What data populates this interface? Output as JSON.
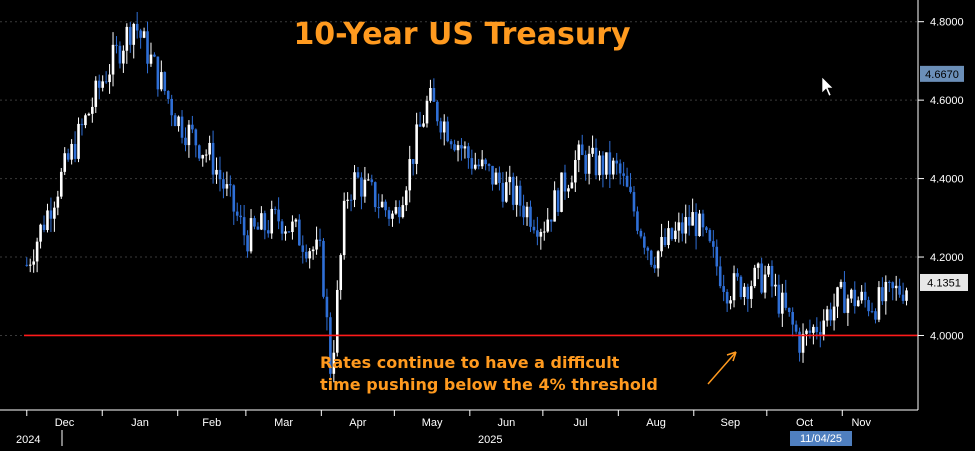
{
  "colors": {
    "background": "#000000",
    "title": "#ff9a1f",
    "annotation": "#ff9a1f",
    "threshold": "#ff1a1a",
    "candle_up": "#ffffff",
    "candle_down": "#2f6fd6",
    "axis": "#ffffff",
    "grid": "#3a3a3a",
    "last_price_bg": "#e8e8e8",
    "highlight_price_bg": "#6b8fb8",
    "date_tag_bg": "#4f7fbf"
  },
  "chart_data": {
    "type": "candlestick",
    "title": "10-Year US Treasury",
    "xlabel": "",
    "ylabel": "",
    "ylim": [
      3.81,
      4.84
    ],
    "y_ticks": [
      4.0,
      4.2,
      4.4,
      4.6,
      4.8
    ],
    "y_tick_labels": [
      "4.0000",
      "4.2000",
      "4.4000",
      "4.6000",
      "4.8000"
    ],
    "grid": "horizontal dashed",
    "x_tick_labels": [
      "Dec",
      "Jan",
      "Feb",
      "Mar",
      "Apr",
      "May",
      "Jun",
      "Jul",
      "Aug",
      "Sep",
      "Oct",
      "Nov"
    ],
    "year_labels": [
      "2024",
      "2025"
    ],
    "threshold": 4.0,
    "last_price": "4.1351",
    "highlight_price": "4.6670",
    "highlight_value": 4.667,
    "last_value": 4.1351,
    "date_tag": "11/04/25",
    "annotation": [
      "Rates continue to have a difficult",
      "time pushing below the 4% threshold"
    ],
    "series": [
      {
        "x": [
          "2024-12-01",
          "2024-12-15",
          "2025-01-01",
          "2025-01-14",
          "2025-02-01",
          "2025-02-15",
          "2025-03-01",
          "2025-03-15",
          "2025-04-01",
          "2025-04-05",
          "2025-04-11",
          "2025-04-15",
          "2025-05-01",
          "2025-05-15",
          "2025-06-01",
          "2025-06-15",
          "2025-07-01",
          "2025-07-15",
          "2025-08-01",
          "2025-08-15",
          "2025-09-01",
          "2025-09-15",
          "2025-10-01",
          "2025-10-15",
          "2025-11-01",
          "2025-11-15",
          "2025-11-28"
        ],
        "values": [
          4.18,
          4.4,
          4.65,
          4.8,
          4.55,
          4.45,
          4.25,
          4.3,
          4.2,
          3.9,
          4.35,
          4.4,
          4.3,
          4.6,
          4.45,
          4.38,
          4.28,
          4.45,
          4.42,
          4.2,
          4.3,
          4.12,
          4.15,
          3.98,
          4.1,
          4.08,
          4.13
        ]
      }
    ]
  }
}
